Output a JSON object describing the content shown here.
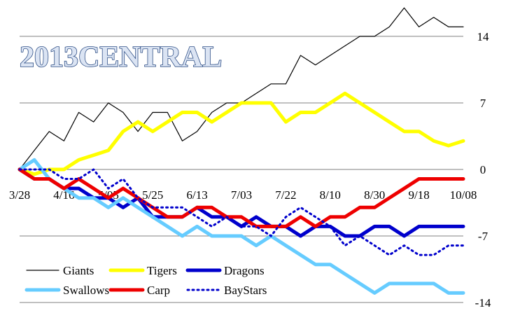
{
  "chart_data": {
    "type": "line",
    "title": "2013CENTRAL",
    "xlabel": "",
    "ylabel": "",
    "ylim": [
      -14,
      16.5
    ],
    "yticks": [
      14,
      7,
      0,
      -7,
      -14
    ],
    "xtick_labels": [
      "3/28",
      "4/16",
      "5/05",
      "5/25",
      "6/13",
      "7/03",
      "7/22",
      "8/10",
      "8/30",
      "9/18",
      "10/08"
    ],
    "grid": "horizontal",
    "legend_position": "bottom-left",
    "series": [
      {
        "name": "Giants",
        "color": "#000000",
        "style": "thin",
        "values": [
          0,
          2,
          4,
          3,
          6,
          5,
          7,
          6,
          4,
          6,
          6,
          3,
          4,
          6,
          7,
          7,
          8,
          9,
          9,
          12,
          11,
          12,
          13,
          14,
          14,
          15,
          17,
          15,
          16,
          15,
          15
        ]
      },
      {
        "name": "Tigers",
        "color": "#ffff00",
        "style": "thick",
        "values": [
          0,
          -0.5,
          0,
          0,
          1,
          1.5,
          2,
          4,
          5,
          4,
          5,
          6,
          6,
          5,
          6,
          7,
          7,
          7,
          5,
          6,
          6,
          7,
          8,
          7,
          6,
          5,
          4,
          4,
          3,
          2.5,
          3
        ]
      },
      {
        "name": "Dragons",
        "color": "#0000cc",
        "style": "thick",
        "values": [
          0,
          -1,
          -1,
          -2,
          -2,
          -3,
          -3,
          -4,
          -3,
          -5,
          -5,
          -5,
          -4,
          -5,
          -5,
          -6,
          -5,
          -6,
          -6,
          -7,
          -6,
          -6,
          -7,
          -7,
          -6,
          -6,
          -7,
          -6,
          -6,
          -6,
          -6
        ]
      },
      {
        "name": "Swallows",
        "color": "#66ccff",
        "style": "thick",
        "values": [
          0,
          1,
          -1,
          -2,
          -3,
          -3,
          -4,
          -3,
          -4,
          -5,
          -6,
          -7,
          -6,
          -7,
          -7,
          -7,
          -8,
          -7,
          -8,
          -9,
          -10,
          -10,
          -11,
          -12,
          -13,
          -12,
          -12,
          -12,
          -12,
          -13,
          -13
        ]
      },
      {
        "name": "Carp",
        "color": "#ee0000",
        "style": "thick",
        "values": [
          0,
          -1,
          -1,
          -2,
          -1,
          -2,
          -3,
          -2,
          -3,
          -4,
          -5,
          -5,
          -4,
          -4,
          -5,
          -5,
          -6,
          -6,
          -6,
          -5,
          -6,
          -5,
          -5,
          -4,
          -4,
          -3,
          -2,
          -1,
          -1,
          -1,
          -1
        ]
      },
      {
        "name": "BayStars",
        "color": "#0000cc",
        "style": "dotted",
        "values": [
          0,
          0,
          0,
          -1,
          -1,
          0,
          -2,
          -1,
          -3,
          -4,
          -4,
          -4,
          -5,
          -6,
          -5,
          -6,
          -6,
          -7,
          -5,
          -4,
          -5,
          -6,
          -8,
          -7,
          -8,
          -9,
          -8,
          -9,
          -9,
          -8,
          -8
        ]
      }
    ]
  }
}
